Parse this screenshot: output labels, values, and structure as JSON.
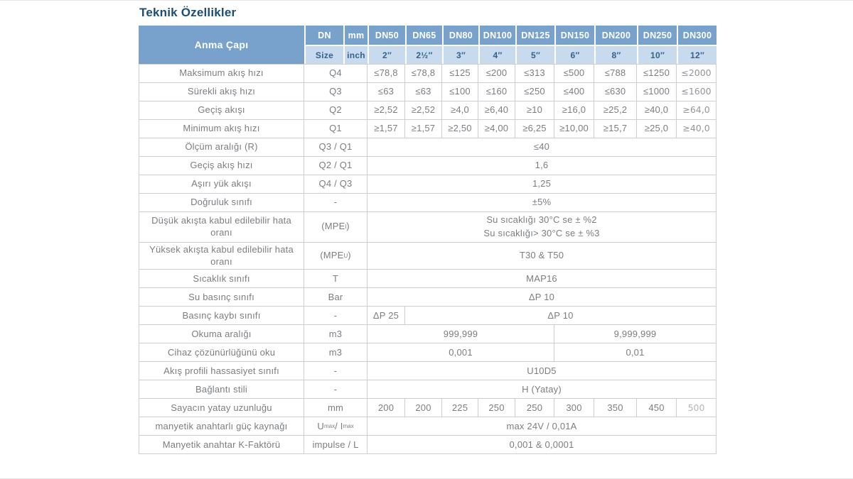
{
  "page_title": "Teknik Özellikler",
  "colors": {
    "title_text": "#1c4e74",
    "header_bg": "#78a2cb",
    "header_text": "#ffffff",
    "subheader_bg": "#c8dbee",
    "subheader_text": "#33618e",
    "body_text": "#7b7e81",
    "border": "#ccced1",
    "dn300_text": "#939699",
    "muted_value": "#b4b7ba"
  },
  "table": {
    "corner_label": "Anma Çapı",
    "unit_row1": [
      "DN",
      "mm"
    ],
    "unit_row2": [
      "Size",
      "inch"
    ],
    "dn_headers": [
      "DN50",
      "DN65",
      "DN80",
      "DN100",
      "DN125",
      "DN150",
      "DN200",
      "DN250",
      "DN300"
    ],
    "inch_headers": [
      "2″",
      "2½″",
      "3″",
      "4″",
      "5″",
      "6″",
      "8″",
      "10″",
      "12″"
    ],
    "rows": [
      {
        "label": "Maksimum akış hızı",
        "symbol": "Q4",
        "cells": [
          "≤78,8",
          "≤78,8",
          "≤125",
          "≤200",
          "≤313",
          "≤500",
          "≤788",
          "≤1250",
          "≤2000"
        ]
      },
      {
        "label": "Sürekli akış hızı",
        "symbol": "Q3",
        "cells": [
          "≤63",
          "≤63",
          "≤100",
          "≤160",
          "≤250",
          "≤400",
          "≤630",
          "≤1000",
          "≤1600"
        ]
      },
      {
        "label": "Geçiş akışı",
        "symbol": "Q2",
        "cells": [
          "≥2,52",
          "≥2,52",
          "≥4,0",
          "≥6,40",
          "≥10",
          "≥16,0",
          "≥25,2",
          "≥40,0",
          "≥64,0"
        ]
      },
      {
        "label": "Minimum akış hızı",
        "symbol": "Q1",
        "cells": [
          "≥1,57",
          "≥1,57",
          "≥2,50",
          "≥4,00",
          "≥6,25",
          "≥10,00",
          "≥15,7",
          "≥25,0",
          "≥40,0"
        ]
      },
      {
        "label": "Ölçüm aralığı (R)",
        "symbol": "Q3 / Q1",
        "cells": [
          {
            "t": "≤40",
            "s": 9
          }
        ]
      },
      {
        "label": "Geçiş akış hızı",
        "symbol": "Q2 / Q1",
        "cells": [
          {
            "t": "1,6",
            "s": 9
          }
        ]
      },
      {
        "label": "Aşırı yük akışı",
        "symbol": "Q4 / Q3",
        "cells": [
          {
            "t": "1,25",
            "s": 9
          }
        ]
      },
      {
        "label": "Doğruluk sınıfı",
        "symbol": "-",
        "cells": [
          {
            "t": "±5%",
            "s": 9
          }
        ]
      },
      {
        "label": "Düşük akışta kabul edilebilir hata oranı",
        "symbol": "(MPE_l_)",
        "cells": [
          {
            "t": "Su sıcaklığı  30°C se ± %2\nSu sıcaklığı> 30°C se ± %3",
            "s": 9
          }
        ]
      },
      {
        "label": "Yüksek akışta kabul edilebilir hata oranı",
        "symbol": "(MPE_U_)",
        "cells": [
          {
            "t": "T30 & T50",
            "s": 9
          }
        ]
      },
      {
        "label": "Sıcaklık sınıfı",
        "symbol": "T",
        "cells": [
          {
            "t": "MAP16",
            "s": 9
          }
        ]
      },
      {
        "label": "Su basınç sınıfı",
        "symbol": "Bar",
        "cells": [
          {
            "t": "ΔP 10",
            "s": 9
          }
        ]
      },
      {
        "label": "Basınç kaybı sınıfı",
        "symbol": "-",
        "cells": [
          "ΔP 25",
          {
            "t": "ΔP 10",
            "s": 8
          }
        ]
      },
      {
        "label": "Okuma aralığı",
        "symbol": "m3",
        "cells": [
          {
            "t": "999,999",
            "s": 5
          },
          {
            "t": "9,999,999",
            "s": 4
          }
        ]
      },
      {
        "label": "Cihaz çözünürlüğünü oku",
        "symbol": "m3",
        "cells": [
          {
            "t": "0,001",
            "s": 5
          },
          {
            "t": "0,01",
            "s": 4
          }
        ]
      },
      {
        "label": "Akış profili hassasiyet sınıfı",
        "symbol": "-",
        "cells": [
          {
            "t": "U10D5",
            "s": 9
          }
        ]
      },
      {
        "label": "Bağlantı stili",
        "symbol": "-",
        "cells": [
          {
            "t": "H (Yatay)",
            "s": 9
          }
        ]
      },
      {
        "label": "Sayacın yatay uzunluğu",
        "symbol": "mm",
        "cells": [
          "200",
          "200",
          "225",
          "250",
          "250",
          "300",
          "350",
          "450",
          {
            "t": "500",
            "muted": true
          }
        ]
      },
      {
        "label": "manyetik anahtarlı güç kaynağı",
        "symbol": "U_max_ / I_max_",
        "cells": [
          {
            "t": "max 24V / 0,01A",
            "s": 9
          }
        ]
      },
      {
        "label": "Manyetik anahtar K-Faktörü",
        "symbol": "impulse / L",
        "cells": [
          {
            "t": "0,001 & 0,0001",
            "s": 9
          }
        ]
      }
    ]
  }
}
